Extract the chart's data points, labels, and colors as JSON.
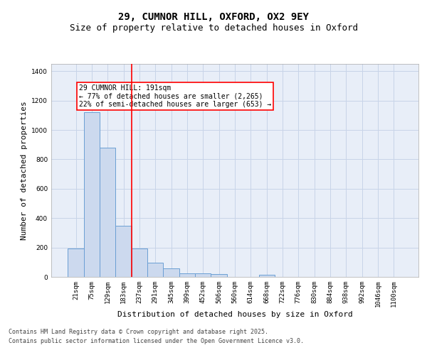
{
  "title_line1": "29, CUMNOR HILL, OXFORD, OX2 9EY",
  "title_line2": "Size of property relative to detached houses in Oxford",
  "xlabel": "Distribution of detached houses by size in Oxford",
  "ylabel": "Number of detached properties",
  "categories": [
    "21sqm",
    "75sqm",
    "129sqm",
    "183sqm",
    "237sqm",
    "291sqm",
    "345sqm",
    "399sqm",
    "452sqm",
    "506sqm",
    "560sqm",
    "614sqm",
    "668sqm",
    "722sqm",
    "776sqm",
    "830sqm",
    "884sqm",
    "938sqm",
    "992sqm",
    "1046sqm",
    "1100sqm"
  ],
  "values": [
    195,
    1120,
    880,
    350,
    195,
    95,
    57,
    25,
    22,
    17,
    0,
    0,
    14,
    0,
    0,
    0,
    0,
    0,
    0,
    0,
    0
  ],
  "bar_color": "#ccd9ee",
  "bar_edge_color": "#6b9fd4",
  "vline_color": "red",
  "vline_x": 3.5,
  "annotation_text": "29 CUMNOR HILL: 191sqm\n← 77% of detached houses are smaller (2,265)\n22% of semi-detached houses are larger (653) →",
  "annotation_box_color": "white",
  "annotation_box_edge_color": "red",
  "ylim_max": 1450,
  "yticks": [
    0,
    200,
    400,
    600,
    800,
    1000,
    1200,
    1400
  ],
  "grid_color": "#c8d4e8",
  "bg_color": "#e8eef8",
  "footer_line1": "Contains HM Land Registry data © Crown copyright and database right 2025.",
  "footer_line2": "Contains public sector information licensed under the Open Government Licence v3.0.",
  "title_fontsize": 10,
  "subtitle_fontsize": 9,
  "axis_label_fontsize": 8,
  "tick_fontsize": 6.5,
  "annotation_fontsize": 7,
  "footer_fontsize": 6
}
